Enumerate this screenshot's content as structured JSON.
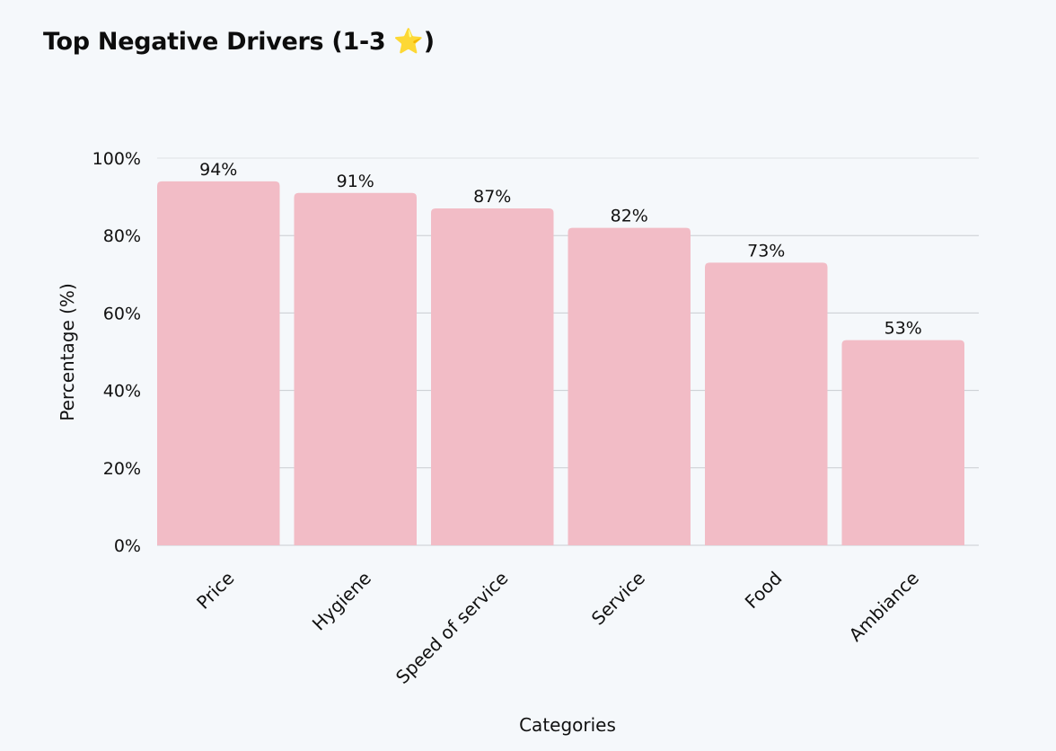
{
  "chart_data": {
    "type": "bar",
    "title": "Top Negative Drivers (1-3 ⭐)",
    "xlabel": "Categories",
    "ylabel": "Percentage (%)",
    "categories": [
      "Price",
      "Hygiene",
      "Speed of service",
      "Service",
      "Food",
      "Ambiance"
    ],
    "values": [
      94,
      91,
      87,
      82,
      73,
      53
    ],
    "value_labels": [
      "94%",
      "91%",
      "87%",
      "82%",
      "73%",
      "53%"
    ],
    "ylim": [
      0,
      100
    ],
    "yticks": [
      "0%",
      "20%",
      "40%",
      "60%",
      "80%",
      "100%"
    ],
    "ytick_values": [
      0,
      20,
      40,
      60,
      80,
      100
    ],
    "grid": true,
    "bar_color": "#f2bcc6",
    "grid_color": "#c9ccd1",
    "title_star_color": "#f5b14c"
  }
}
